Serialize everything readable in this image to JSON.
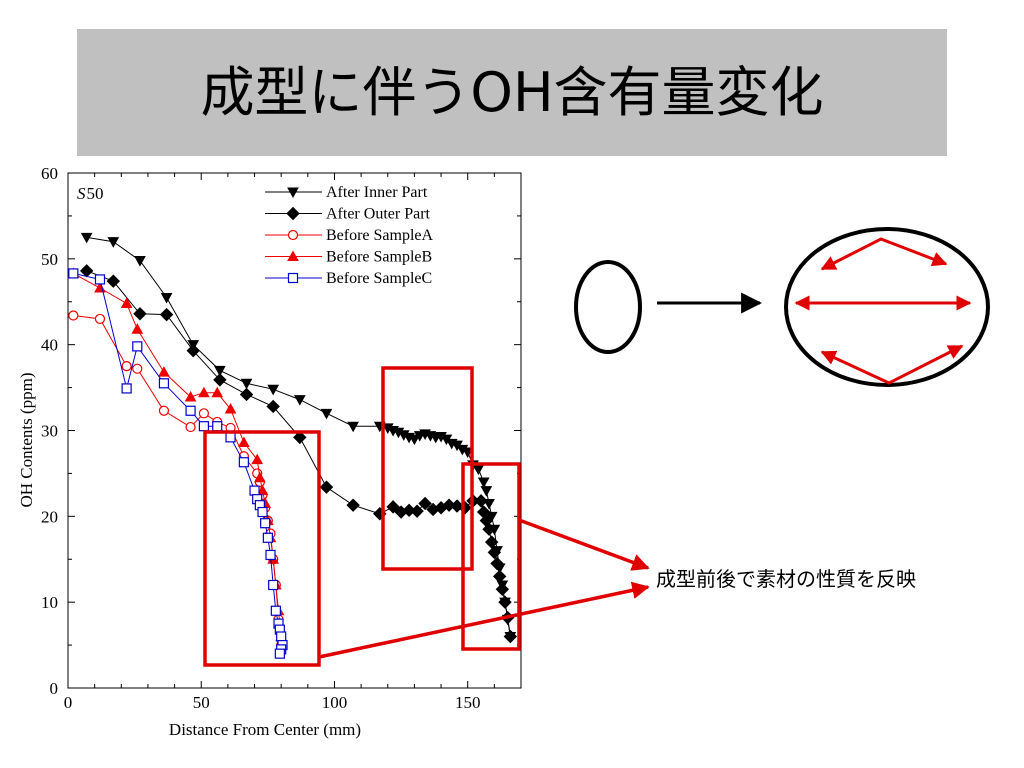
{
  "slide": {
    "title": "成型に伴うOH含有量変化",
    "annotation": "成型前後で素材の性質を反映"
  },
  "chart_data": {
    "type": "line",
    "title": "",
    "panel_label_italic": "S",
    "panel_label": "50",
    "xlabel": "Distance From Center (mm)",
    "ylabel": "OH Contents (ppm)",
    "xlim": [
      0,
      170
    ],
    "ylim": [
      0,
      60
    ],
    "xticks": [
      0,
      50,
      100,
      150
    ],
    "yticks": [
      0,
      10,
      20,
      30,
      40,
      50,
      60
    ],
    "grid": false,
    "legend_position": "top-right",
    "series": [
      {
        "name": "After Inner Part",
        "color": "#000000",
        "marker": "triangle-down-filled",
        "x": [
          7,
          17,
          27,
          37,
          47,
          57,
          67,
          77,
          87,
          97,
          107,
          117,
          120,
          122,
          124,
          126,
          128,
          130,
          132,
          134,
          136,
          138,
          140,
          142,
          144,
          146,
          148,
          150,
          152,
          154,
          156,
          157,
          158,
          159,
          160,
          161,
          162,
          163,
          164,
          165,
          166
        ],
        "y": [
          52.5,
          52,
          49.8,
          45.5,
          40,
          37,
          35.5,
          34.8,
          33.6,
          32,
          30.5,
          30.5,
          30.3,
          30,
          29.8,
          29.5,
          29.2,
          29,
          29.4,
          29.6,
          29.4,
          29.2,
          29.3,
          29,
          28.5,
          28.3,
          27.8,
          27.5,
          26,
          25.5,
          24,
          23,
          21.5,
          20,
          18.5,
          16,
          14,
          12,
          10,
          8,
          6
        ]
      },
      {
        "name": "After Outer Part",
        "color": "#000000",
        "marker": "diamond-filled",
        "x": [
          7,
          17,
          27,
          37,
          47,
          57,
          67,
          77,
          87,
          97,
          107,
          117,
          122,
          125,
          128,
          131,
          134,
          137,
          140,
          143,
          146,
          149,
          152,
          155,
          156,
          157,
          158,
          159,
          160,
          161,
          162,
          163,
          164,
          165,
          166
        ],
        "y": [
          48.6,
          47.4,
          43.6,
          43.5,
          39.3,
          35.9,
          34.2,
          32.8,
          29.2,
          23.4,
          21.3,
          20.3,
          21.1,
          20.5,
          20.7,
          20.6,
          21.5,
          20.8,
          21,
          21.3,
          21.2,
          21,
          21.8,
          21.8,
          20.5,
          19.5,
          18.5,
          17,
          15.8,
          14.5,
          13,
          11.5,
          10,
          8.2,
          6
        ]
      },
      {
        "name": "Before SampleA",
        "color": "#ee0000",
        "marker": "circle-open",
        "x": [
          2,
          12,
          22,
          26,
          36,
          46,
          51,
          56,
          61,
          66,
          71,
          72,
          73,
          74,
          75,
          76,
          77,
          78,
          79,
          80
        ],
        "y": [
          43.4,
          43,
          37.5,
          37.2,
          32.3,
          30.4,
          32,
          31,
          30.3,
          27,
          25,
          24,
          22.5,
          21,
          19.5,
          18,
          15,
          12,
          8,
          5
        ]
      },
      {
        "name": "Before SampleB",
        "color": "#ee0000",
        "marker": "triangle-up-filled",
        "x": [
          2,
          12,
          22,
          26,
          36,
          46,
          51,
          56,
          61,
          66,
          71,
          72,
          73,
          74,
          75,
          76,
          77,
          78,
          79,
          80
        ],
        "y": [
          48.3,
          46.6,
          44.8,
          41.8,
          36.8,
          33.9,
          34.4,
          34.4,
          32.5,
          28.6,
          26.6,
          24.5,
          23,
          21.5,
          19.5,
          17.5,
          15,
          12,
          9,
          6
        ]
      },
      {
        "name": "Before SampleC",
        "color": "#0000cc",
        "marker": "square-open",
        "x": [
          2,
          12,
          22,
          26,
          36,
          46,
          51,
          56,
          61,
          66,
          70,
          71,
          72,
          73,
          74,
          75,
          76,
          77,
          78,
          79,
          79.5,
          80,
          80.5,
          80,
          79.5
        ],
        "y": [
          48.3,
          47.6,
          34.9,
          39.8,
          35.5,
          32.3,
          30.5,
          30.5,
          29.2,
          26.3,
          23,
          22,
          21.3,
          20.5,
          19.2,
          17.5,
          15.5,
          12,
          9,
          7.5,
          6.8,
          6,
          5,
          4.5,
          4
        ]
      }
    ],
    "highlight_boxes": 4,
    "diagram": {
      "before_shape": "small-ellipse",
      "after_shape": "large-ellipse-with-red-arrows"
    }
  }
}
